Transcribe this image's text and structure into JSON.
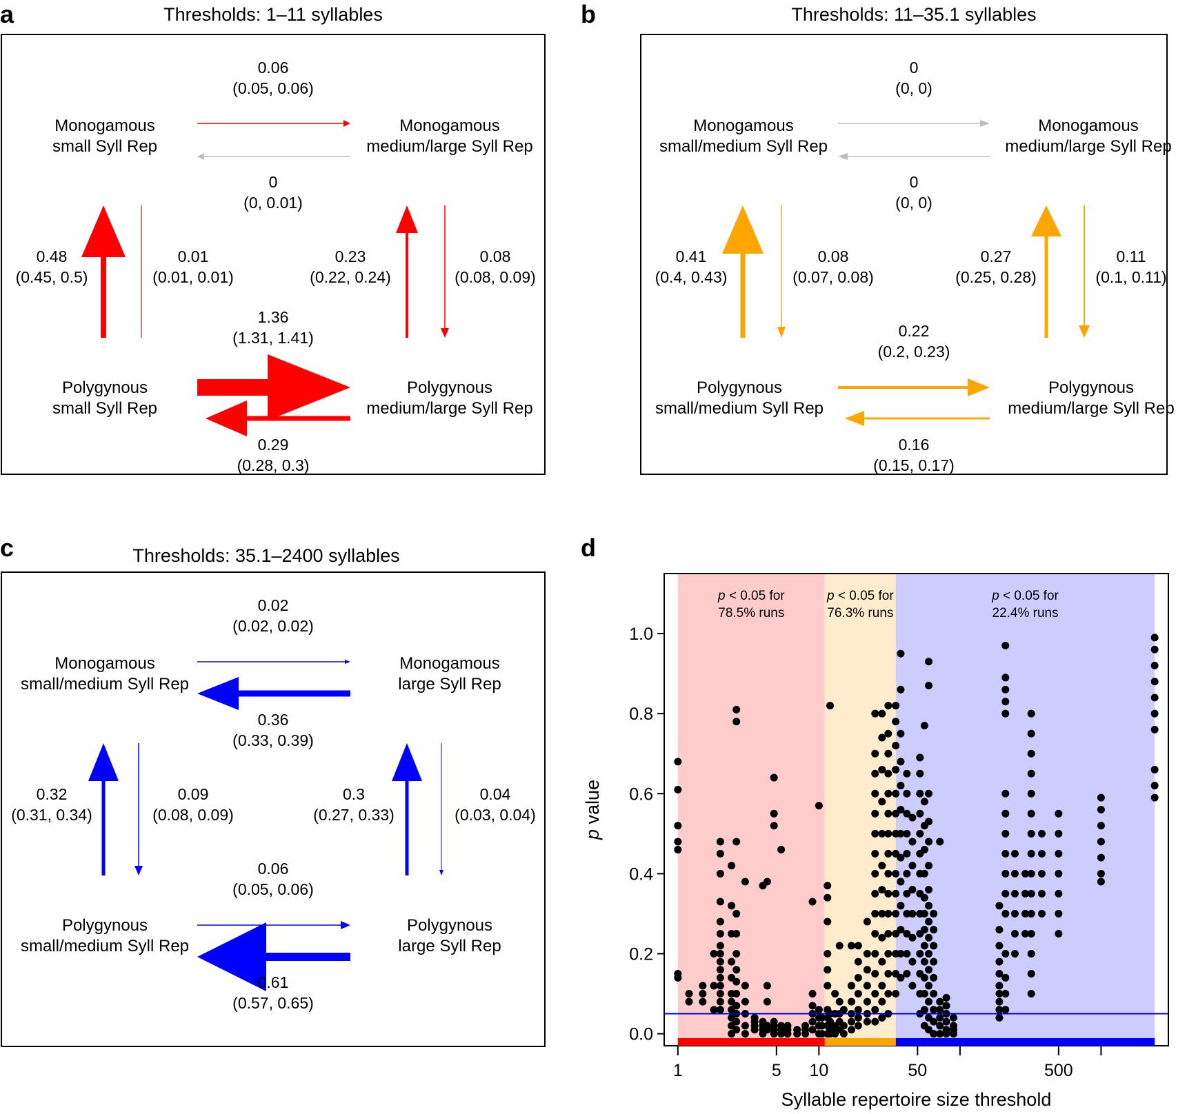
{
  "panels": [
    {
      "id": "a",
      "label": "a",
      "title": "Thresholds: 1–11 syllables",
      "color": "#ff0000",
      "nodes": {
        "tl": [
          "Monogamous",
          "small Syll Rep"
        ],
        "tr": [
          "Monogamous",
          "medium/large Syll Rep"
        ],
        "bl": [
          "Polygynous",
          "small Syll Rep"
        ],
        "br": [
          "Polygynous",
          "medium/large Syll Rep"
        ]
      },
      "rates": {
        "top_right": {
          "value": "0.06",
          "ci": "(0.05, 0.06)"
        },
        "top_left": {
          "value": "0",
          "ci": "(0, 0.01)"
        },
        "left_up": {
          "value": "0.48",
          "ci": "(0.45, 0.5)"
        },
        "left_down": {
          "value": "0.01",
          "ci": "(0.01, 0.01)"
        },
        "right_up": {
          "value": "0.23",
          "ci": "(0.22, 0.24)"
        },
        "right_down": {
          "value": "0.08",
          "ci": "(0.08, 0.09)"
        },
        "bottom_right": {
          "value": "1.36",
          "ci": "(1.31, 1.41)"
        },
        "bottom_left": {
          "value": "0.29",
          "ci": "(0.28, 0.3)"
        }
      }
    },
    {
      "id": "b",
      "label": "b",
      "title": "Thresholds: 11–35.1 syllables",
      "color": "#ffa500",
      "nodes": {
        "tl": [
          "Monogamous",
          "small/medium Syll Rep"
        ],
        "tr": [
          "Monogamous",
          "medium/large Syll Rep"
        ],
        "bl": [
          "Polygynous",
          "small/medium Syll Rep"
        ],
        "br": [
          "Polygynous",
          "medium/large Syll Rep"
        ]
      },
      "rates": {
        "top_right": {
          "value": "0",
          "ci": "(0, 0)"
        },
        "top_left": {
          "value": "0",
          "ci": "(0, 0)"
        },
        "left_up": {
          "value": "0.41",
          "ci": "(0.4, 0.43)"
        },
        "left_down": {
          "value": "0.08",
          "ci": "(0.07, 0.08)"
        },
        "right_up": {
          "value": "0.27",
          "ci": "(0.25, 0.28)"
        },
        "right_down": {
          "value": "0.11",
          "ci": "(0.1, 0.11)"
        },
        "bottom_right": {
          "value": "0.22",
          "ci": "(0.2, 0.23)"
        },
        "bottom_left": {
          "value": "0.16",
          "ci": "(0.15, 0.17)"
        }
      }
    },
    {
      "id": "c",
      "label": "c",
      "title": "Thresholds: 35.1–2400 syllables",
      "color": "#0000ff",
      "nodes": {
        "tl": [
          "Monogamous",
          "small/medium Syll Rep"
        ],
        "tr": [
          "Monogamous",
          "large Syll Rep"
        ],
        "bl": [
          "Polygynous",
          "small/medium Syll Rep"
        ],
        "br": [
          "Polygynous",
          "large Syll Rep"
        ]
      },
      "rates": {
        "top_right": {
          "value": "0.02",
          "ci": "(0.02, 0.02)"
        },
        "top_left": {
          "value": "0.36",
          "ci": "(0.33, 0.39)"
        },
        "left_up": {
          "value": "0.32",
          "ci": "(0.31, 0.34)"
        },
        "left_down": {
          "value": "0.09",
          "ci": "(0.08, 0.09)"
        },
        "right_up": {
          "value": "0.3",
          "ci": "(0.27, 0.33)"
        },
        "right_down": {
          "value": "0.04",
          "ci": "(0.03, 0.04)"
        },
        "bottom_right": {
          "value": "0.06",
          "ci": "(0.05, 0.06)"
        },
        "bottom_left": {
          "value": "0.61",
          "ci": "(0.57, 0.65)"
        }
      }
    }
  ],
  "chart_data": {
    "type": "scatter",
    "label": "d",
    "xlabel": "Syllable repertoire size threshold",
    "ylabel": "p value",
    "x_scale": "log10",
    "xlim": [
      0.8,
      3000
    ],
    "ylim": [
      -0.03,
      1.15
    ],
    "x_ticks": [
      1,
      5,
      10,
      50,
      100,
      500,
      1000
    ],
    "x_tick_labels": [
      "1",
      "5",
      "10",
      "50",
      "",
      "500",
      ""
    ],
    "y_ticks": [
      0.0,
      0.2,
      0.4,
      0.6,
      0.8,
      1.0
    ],
    "y_tick_labels": [
      "0.0",
      "0.2",
      "0.4",
      "0.6",
      "0.8",
      "1.0"
    ],
    "reference_line": {
      "y": 0.05,
      "color": "#0000cc"
    },
    "regions": [
      {
        "from": 1,
        "to": 11,
        "color": "#ff0000",
        "shade": "#ffcccc",
        "text_italic": "p",
        "text_lines": [
          "< 0.05 for",
          "78.5% runs"
        ]
      },
      {
        "from": 11,
        "to": 35.1,
        "color": "#ffa500",
        "shade": "#ffeccc",
        "text_italic": "p",
        "text_lines": [
          "< 0.05 for",
          "76.3% runs"
        ]
      },
      {
        "from": 35.1,
        "to": 2400,
        "color": "#0000ff",
        "shade": "#ccccff",
        "text_italic": "p",
        "text_lines": [
          "< 0.05 for",
          "22.4% runs"
        ]
      }
    ],
    "point_groups": [
      {
        "x": 1,
        "y": [
          0.15,
          0.14,
          0.46,
          0.48,
          0.52,
          0.61,
          0.68
        ]
      },
      {
        "x": 1.2,
        "y": [
          0.08,
          0.1
        ]
      },
      {
        "x": 1.5,
        "y": [
          0.12,
          0.1,
          0.08
        ]
      },
      {
        "x": 1.8,
        "y": [
          0.06,
          0.12,
          0.2
        ]
      },
      {
        "x": 2,
        "y": [
          0.06,
          0.08,
          0.1,
          0.12,
          0.14,
          0.16,
          0.18,
          0.2,
          0.22,
          0.25,
          0.28,
          0.33,
          0.4,
          0.45,
          0.48
        ]
      },
      {
        "x": 2.4,
        "y": [
          0.0,
          0.02,
          0.04,
          0.06,
          0.08,
          0.1,
          0.14,
          0.18,
          0.25,
          0.32,
          0.42
        ]
      },
      {
        "x": 2.6,
        "y": [
          0.01,
          0.03,
          0.05,
          0.07,
          0.1,
          0.13,
          0.16,
          0.2,
          0.25,
          0.3,
          0.48,
          0.78,
          0.81
        ]
      },
      {
        "x": 3,
        "y": [
          0.0,
          0.02,
          0.05,
          0.08,
          0.12,
          0.38
        ]
      },
      {
        "x": 3.5,
        "y": [
          0.01,
          0.02,
          0.03,
          0.04
        ]
      },
      {
        "x": 4,
        "y": [
          0.0,
          0.01,
          0.02,
          0.03,
          0.37
        ]
      },
      {
        "x": 4.3,
        "y": [
          0.01,
          0.02,
          0.08,
          0.12,
          0.38
        ]
      },
      {
        "x": 4.8,
        "y": [
          0.0,
          0.01,
          0.02,
          0.03,
          0.52,
          0.55,
          0.64
        ]
      },
      {
        "x": 5.4,
        "y": [
          0.0,
          0.01,
          0.02,
          0.46
        ]
      },
      {
        "x": 6,
        "y": [
          0.0,
          0.01,
          0.02
        ]
      },
      {
        "x": 7,
        "y": [
          0.0,
          0.01
        ]
      },
      {
        "x": 8,
        "y": [
          0.0,
          0.01,
          0.02
        ]
      },
      {
        "x": 9,
        "y": [
          0.01,
          0.03,
          0.05,
          0.07,
          0.1,
          0.33
        ]
      },
      {
        "x": 10,
        "y": [
          0.0,
          0.02,
          0.04,
          0.06,
          0.57
        ]
      },
      {
        "x": 10.5,
        "y": [
          0.0,
          0.02,
          0.04
        ]
      },
      {
        "x": 11.5,
        "y": [
          0.0,
          0.02,
          0.04,
          0.06,
          0.12,
          0.16,
          0.2,
          0.28,
          0.34,
          0.37
        ]
      },
      {
        "x": 12,
        "y": [
          0.0,
          0.01,
          0.03,
          0.05,
          0.82
        ]
      },
      {
        "x": 13,
        "y": [
          0.0,
          0.01,
          0.02,
          0.05,
          0.1
        ]
      },
      {
        "x": 14,
        "y": [
          0.01,
          0.03,
          0.05,
          0.08,
          0.22
        ]
      },
      {
        "x": 15,
        "y": [
          0.0,
          0.02,
          0.06
        ]
      },
      {
        "x": 17,
        "y": [
          0.01,
          0.03,
          0.05,
          0.08,
          0.12,
          0.22
        ]
      },
      {
        "x": 19,
        "y": [
          0.02,
          0.04,
          0.06,
          0.1,
          0.14,
          0.18,
          0.22
        ]
      },
      {
        "x": 22,
        "y": [
          0.03,
          0.05,
          0.08,
          0.12,
          0.16,
          0.2,
          0.28
        ]
      },
      {
        "x": 25,
        "y": [
          0.03,
          0.06,
          0.1,
          0.15,
          0.2,
          0.25,
          0.3,
          0.35,
          0.4,
          0.45,
          0.5,
          0.55,
          0.6,
          0.65,
          0.7,
          0.8
        ]
      },
      {
        "x": 28,
        "y": [
          0.04,
          0.08,
          0.12,
          0.18,
          0.24,
          0.3,
          0.36,
          0.42,
          0.5,
          0.58,
          0.66,
          0.74,
          0.8
        ]
      },
      {
        "x": 31,
        "y": [
          0.05,
          0.1,
          0.15,
          0.2,
          0.25,
          0.3,
          0.35,
          0.4,
          0.45,
          0.5,
          0.55,
          0.6,
          0.65,
          0.7,
          0.75,
          0.82
        ]
      },
      {
        "x": 35,
        "y": [
          0.1,
          0.15,
          0.2,
          0.25,
          0.3,
          0.35,
          0.4,
          0.45,
          0.5,
          0.55,
          0.6,
          0.66,
          0.72,
          0.78,
          0.82
        ]
      },
      {
        "x": 38,
        "y": [
          0.14,
          0.2,
          0.26,
          0.32,
          0.38,
          0.44,
          0.5,
          0.56,
          0.62,
          0.68,
          0.75,
          0.86,
          0.95
        ]
      },
      {
        "x": 42,
        "y": [
          0.15,
          0.2,
          0.25,
          0.3,
          0.35,
          0.4,
          0.45,
          0.5,
          0.55,
          0.6,
          0.65
        ]
      },
      {
        "x": 46,
        "y": [
          0.12,
          0.18,
          0.24,
          0.3,
          0.36,
          0.42,
          0.48,
          0.54
        ]
      },
      {
        "x": 52,
        "y": [
          0.05,
          0.1,
          0.15,
          0.2,
          0.25,
          0.3,
          0.35,
          0.4,
          0.45,
          0.5,
          0.55,
          0.6,
          0.65,
          0.69
        ]
      },
      {
        "x": 56,
        "y": [
          0.02,
          0.06,
          0.1,
          0.14,
          0.18,
          0.22,
          0.26,
          0.3,
          0.34,
          0.4,
          0.46,
          0.52,
          0.58,
          0.77
        ]
      },
      {
        "x": 60,
        "y": [
          0.01,
          0.04,
          0.08,
          0.12,
          0.16,
          0.2,
          0.24,
          0.28,
          0.32,
          0.36,
          0.42,
          0.48,
          0.53,
          0.6,
          0.87,
          0.93
        ]
      },
      {
        "x": 65,
        "y": [
          0.0,
          0.03,
          0.06,
          0.1,
          0.14,
          0.18,
          0.22,
          0.26,
          0.3
        ]
      },
      {
        "x": 72,
        "y": [
          0.0,
          0.02,
          0.04,
          0.06,
          0.08,
          0.48
        ]
      },
      {
        "x": 80,
        "y": [
          0.0,
          0.01,
          0.03,
          0.05,
          0.07,
          0.09
        ]
      },
      {
        "x": 90,
        "y": [
          0.0,
          0.01,
          0.02,
          0.04
        ]
      },
      {
        "x": 190,
        "y": [
          0.04,
          0.06,
          0.08,
          0.1,
          0.12,
          0.15,
          0.18,
          0.22,
          0.26,
          0.32
        ]
      },
      {
        "x": 210,
        "y": [
          0.06,
          0.1,
          0.14,
          0.2,
          0.3,
          0.35,
          0.4,
          0.45,
          0.5,
          0.55,
          0.6,
          0.8,
          0.83,
          0.86,
          0.89,
          0.97
        ]
      },
      {
        "x": 245,
        "y": [
          0.2,
          0.25,
          0.3,
          0.35,
          0.4,
          0.45
        ]
      },
      {
        "x": 290,
        "y": [
          0.25,
          0.3,
          0.35,
          0.4
        ]
      },
      {
        "x": 320,
        "y": [
          0.1,
          0.15,
          0.2,
          0.25,
          0.3,
          0.35,
          0.4,
          0.45,
          0.5,
          0.55,
          0.6,
          0.65,
          0.7,
          0.75,
          0.8
        ]
      },
      {
        "x": 380,
        "y": [
          0.3,
          0.35,
          0.4,
          0.45,
          0.5
        ]
      },
      {
        "x": 500,
        "y": [
          0.25,
          0.3,
          0.35,
          0.4,
          0.45,
          0.5,
          0.55
        ]
      },
      {
        "x": 1000,
        "y": [
          0.38,
          0.4,
          0.44,
          0.48,
          0.52,
          0.56,
          0.59
        ]
      },
      {
        "x": 2400,
        "y": [
          0.59,
          0.62,
          0.66,
          0.76,
          0.8,
          0.84,
          0.88,
          0.92,
          0.96,
          0.99
        ]
      }
    ]
  }
}
